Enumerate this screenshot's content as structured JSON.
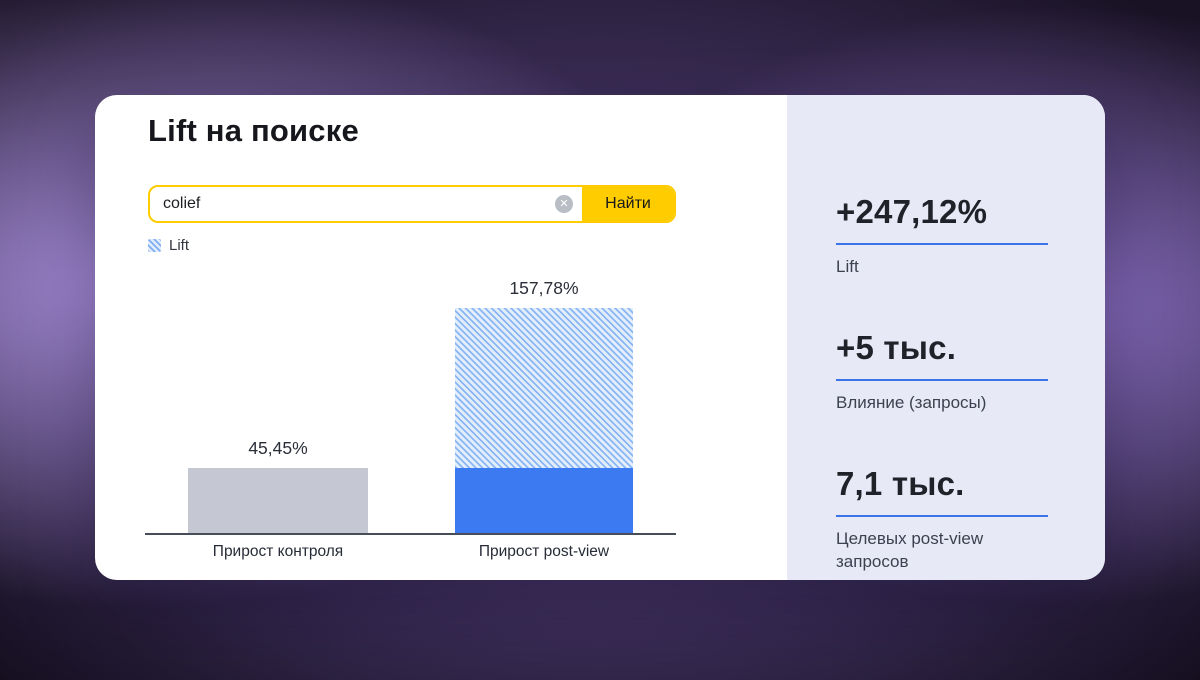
{
  "page": {
    "title": "Lift на поиске"
  },
  "search": {
    "value": "colief",
    "button_label": "Найти",
    "clear_icon_glyph": "✕"
  },
  "legend": {
    "items": [
      {
        "label": "Lift"
      }
    ]
  },
  "chart_data": {
    "type": "bar",
    "categories": [
      "Прирост контроля",
      "Прирост post-view"
    ],
    "values": [
      45.45,
      157.78
    ],
    "value_labels": [
      "45,45%",
      "157,78%"
    ],
    "legend": [
      "Lift"
    ],
    "legend_position": "top-left",
    "xlabel": "",
    "ylabel": "",
    "ylim": [
      0,
      175
    ],
    "grid": false,
    "series": [
      {
        "name": "Прирост контроля",
        "value": 45.45,
        "style": "solid-gray"
      },
      {
        "name": "Прирост post-view",
        "value": 157.78,
        "style": "stacked-blue",
        "solid_value": 45.45,
        "hatched_value": 112.33
      }
    ]
  },
  "stats": [
    {
      "value": "+247,12%",
      "label": "Lift"
    },
    {
      "value": "+5 тыс.",
      "label": "Влияние (запросы)"
    },
    {
      "value": "7,1 тыс.",
      "label": "Целевых post-view запросов"
    }
  ],
  "colors": {
    "accent_blue": "#3b7af0",
    "underline_blue": "#3b73e8",
    "yandex_yellow": "#ffcc00",
    "bar_gray": "#c5c8d3",
    "panel_background": "#e7eaf6"
  }
}
